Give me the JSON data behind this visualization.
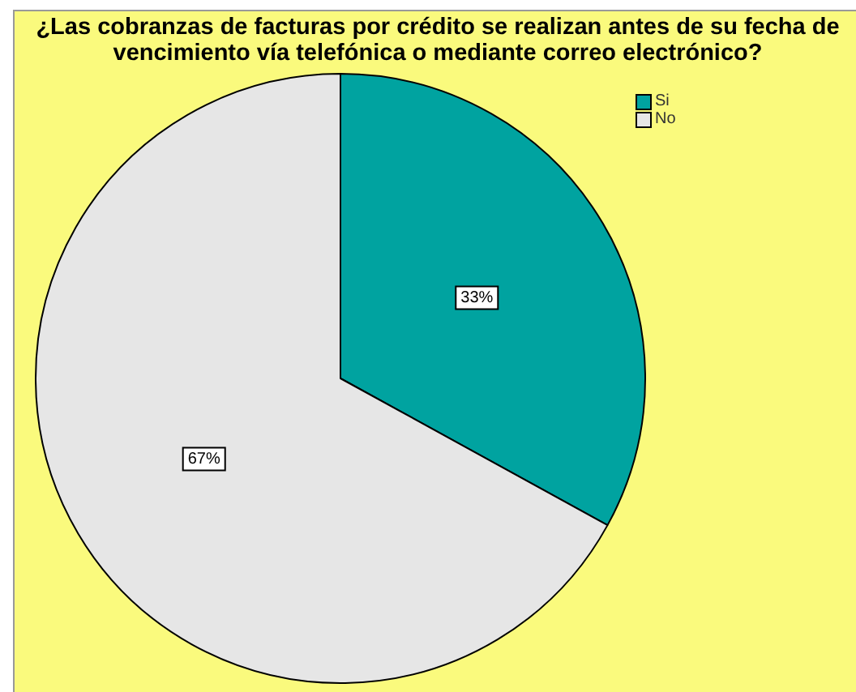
{
  "chart_data": {
    "type": "pie",
    "title": "¿Las cobranzas de facturas por crédito se realizan antes de su fecha de vencimiento vía telefónica o mediante correo electrónico?",
    "categories": [
      "Si",
      "No"
    ],
    "values": [
      33,
      67
    ],
    "colors": [
      "#00a3a0",
      "#e6e6e6"
    ],
    "value_labels": [
      "33%",
      "67%"
    ],
    "legend": "top right"
  }
}
